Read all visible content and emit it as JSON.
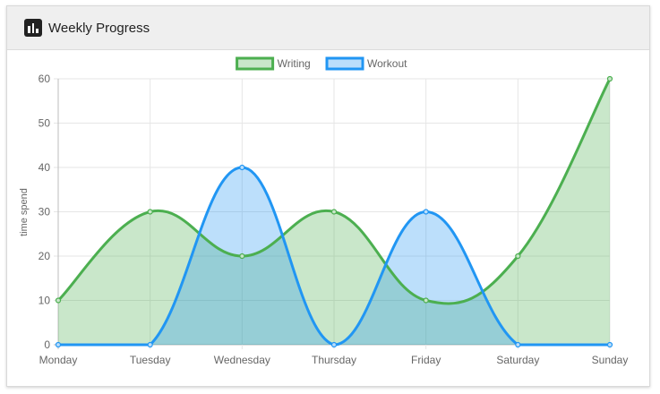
{
  "header": {
    "title": "Weekly Progress",
    "icon": "bar-chart-icon"
  },
  "chart_data": {
    "type": "line",
    "title": "",
    "xlabel": "",
    "ylabel": "time spend",
    "categories": [
      "Monday",
      "Tuesday",
      "Wednesday",
      "Thursday",
      "Friday",
      "Saturday",
      "Sunday"
    ],
    "ylim": [
      0,
      60
    ],
    "yticks": [
      0,
      10,
      20,
      30,
      40,
      50,
      60
    ],
    "grid": true,
    "legend": "top-center",
    "series": [
      {
        "name": "Writing",
        "values": [
          10,
          30,
          20,
          30,
          10,
          20,
          60
        ],
        "color": "#4caf50",
        "fill": "#c8e6c9",
        "filled": true
      },
      {
        "name": "Workout",
        "values": [
          0,
          0,
          40,
          0,
          30,
          0,
          0
        ],
        "color": "#2196f3",
        "fill": "#bbdefb",
        "filled": true
      }
    ]
  }
}
